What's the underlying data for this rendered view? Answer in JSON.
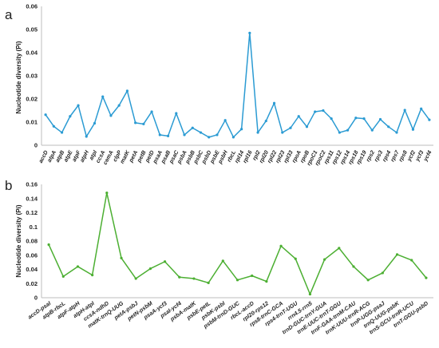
{
  "chart_data": [
    {
      "type": "line",
      "panel_label": "a",
      "ylabel": "Nucleotide diversity (Pi)",
      "xlabel": "",
      "ylim": [
        0,
        0.06
      ],
      "yticks": [
        "0",
        "0.01",
        "0.02",
        "0.03",
        "0.04",
        "0.05",
        "0.06"
      ],
      "grid": false,
      "color": "#2b9bd3",
      "categories": [
        "accD",
        "atpA",
        "atpB",
        "atpE",
        "atpF",
        "atpH",
        "atpI",
        "ccsA",
        "cemA",
        "clpP",
        "matK",
        "petA",
        "petB",
        "petD",
        "psaA",
        "psaB",
        "psaC",
        "psbA",
        "psbB",
        "psbC",
        "psbD",
        "psbE",
        "psbH",
        "rbcL",
        "rpl14",
        "rpl16",
        "rpl2",
        "rpl20",
        "rpl22",
        "rpl23",
        "rpl33",
        "rpoA",
        "rpoB",
        "rpoC1",
        "rpoC2",
        "rps11",
        "rps12",
        "rps14",
        "rps18",
        "rps19",
        "rps2",
        "rps3",
        "rps4",
        "rps7",
        "rps8",
        "ycf2",
        "ycf3",
        "ycf4"
      ],
      "values": [
        0.0132,
        0.0082,
        0.0055,
        0.0125,
        0.0172,
        0.0038,
        0.0095,
        0.021,
        0.0128,
        0.0172,
        0.0235,
        0.0097,
        0.0092,
        0.0145,
        0.0045,
        0.004,
        0.0138,
        0.0045,
        0.0075,
        0.0055,
        0.0035,
        0.0045,
        0.0108,
        0.0035,
        0.007,
        0.0485,
        0.0055,
        0.0105,
        0.0182,
        0.0055,
        0.0075,
        0.0125,
        0.008,
        0.0145,
        0.015,
        0.0115,
        0.0055,
        0.0065,
        0.0118,
        0.0115,
        0.0065,
        0.0112,
        0.008,
        0.0055,
        0.0152,
        0.0068,
        0.0158,
        0.011
      ]
    },
    {
      "type": "line",
      "panel_label": "b",
      "ylabel": "Nucleotide diversity (Pi)",
      "xlabel": "",
      "ylim": [
        0,
        0.16
      ],
      "yticks": [
        "0",
        "0.02",
        "0.04",
        "0.06",
        "0.08",
        "0.1",
        "0.12",
        "0.14",
        "0.16"
      ],
      "grid": false,
      "color": "#4caf32",
      "categories": [
        "accD-psaI",
        "atpB-rbcL",
        "atpF-atpH",
        "atpH-atpI",
        "ccsA-ndhD",
        "matK-trnQ-UUG",
        "petA-psbJ",
        "petN-psbM",
        "psaA-ycf3",
        "psaI-ycf4",
        "psbA-matK",
        "psbE-petL",
        "psbK-psbI",
        "psbM-trnD-GUC",
        "rbcL-accD",
        "rpl20-rps12",
        "rps8-trnC-GCA",
        "rps4-trnT-UGU",
        "rrn4.5-rrn5",
        "trnD-GUC-trnY-GUA",
        "trnE-UUC-trnT-GGU",
        "trnF-GAA-trnM-CAU",
        "trnK-UUU-trnR-ACG",
        "trnP-UGG-psaJ",
        "trnQ-UUG-psbK",
        "trnS-GCU-trnR-UCU",
        "trnT-GGU-psbD"
      ],
      "values": [
        0.075,
        0.03,
        0.044,
        0.032,
        0.148,
        0.056,
        0.027,
        0.041,
        0.051,
        0.029,
        0.027,
        0.021,
        0.052,
        0.025,
        0.031,
        0.023,
        0.073,
        0.055,
        0.005,
        0.054,
        0.07,
        0.044,
        0.025,
        0.035,
        0.061,
        0.053,
        0.028
      ]
    }
  ]
}
